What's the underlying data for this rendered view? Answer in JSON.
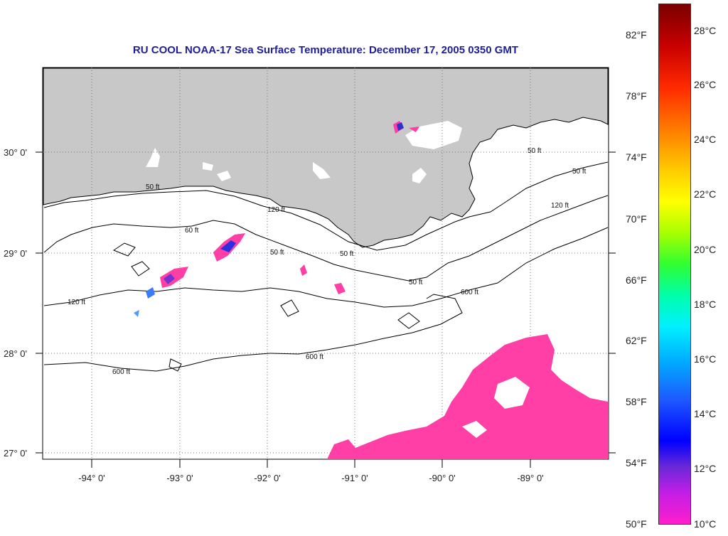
{
  "title": "RU COOL  NOAA-17  Sea Surface Temperature:  December 17, 2005 0350 GMT",
  "map": {
    "latitude_labels": [
      "30° 0'",
      "29° 0'",
      "28° 0'",
      "27° 0'"
    ],
    "longitude_labels": [
      "-94° 0'",
      "-93° 0'",
      "-92° 0'",
      "-91° 0'",
      "-90° 0'",
      "-89° 0'"
    ],
    "contour_labels": [
      "50 ft",
      "120 ft",
      "60 ft",
      "50 ft",
      "120 ft",
      "50 ft",
      "600 ft",
      "600 ft",
      "600 ft",
      "50 ft",
      "120 ft",
      "50 ft",
      "50 ft"
    ],
    "colors": {
      "land": "#c8c8c8",
      "ocean": "#ffffff",
      "cold_patch": "#ff3fa6"
    }
  },
  "colorbar": {
    "fahrenheit_labels": [
      "82°F",
      "78°F",
      "74°F",
      "70°F",
      "66°F",
      "62°F",
      "58°F",
      "54°F",
      "50°F"
    ],
    "celsius_labels": [
      "28°C",
      "26°C",
      "24°C",
      "22°C",
      "20°C",
      "18°C",
      "16°C",
      "14°C",
      "12°C",
      "10°C"
    ]
  }
}
